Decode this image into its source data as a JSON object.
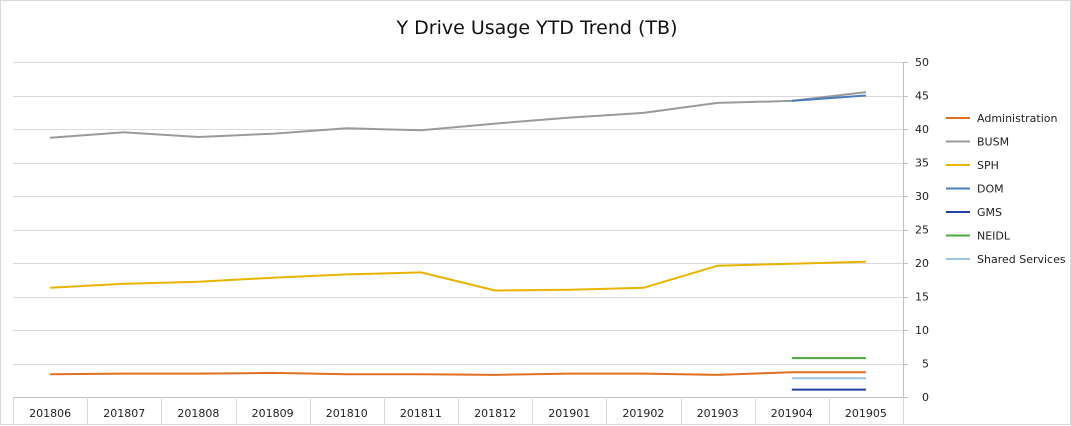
{
  "chart_data": {
    "type": "line",
    "title": "Y Drive Usage YTD Trend (TB)",
    "categories": [
      "201806",
      "201807",
      "201808",
      "201809",
      "201810",
      "201811",
      "201812",
      "201901",
      "201902",
      "201903",
      "201904",
      "201905"
    ],
    "y_axis_position": "right",
    "ylim": [
      0,
      50
    ],
    "yticks": [
      0,
      5,
      10,
      15,
      20,
      25,
      30,
      35,
      40,
      45,
      50
    ],
    "grid": true,
    "legend_position": "right",
    "series": [
      {
        "name": "Administration",
        "color": "#E07020",
        "values": [
          3.4,
          3.5,
          3.5,
          3.6,
          3.4,
          3.4,
          3.3,
          3.5,
          3.5,
          3.3,
          3.7,
          3.7
        ]
      },
      {
        "name": "BUSM",
        "color": "#9A9A9A",
        "values": [
          38.7,
          39.5,
          38.8,
          39.3,
          40.1,
          39.8,
          40.8,
          41.7,
          42.4,
          43.9,
          44.2,
          45.5
        ]
      },
      {
        "name": "SPH",
        "color": "#E8B400",
        "values": [
          16.3,
          16.9,
          17.2,
          17.8,
          18.3,
          18.6,
          15.9,
          16.0,
          16.3,
          19.6,
          19.9,
          20.2
        ]
      },
      {
        "name": "DOM",
        "color": "#4A7EBB",
        "values": [
          null,
          null,
          null,
          null,
          null,
          null,
          null,
          null,
          null,
          null,
          44.2,
          45.0
        ]
      },
      {
        "name": "GMS",
        "color": "#2040A0",
        "values": [
          null,
          null,
          null,
          null,
          null,
          null,
          null,
          null,
          null,
          null,
          1.1,
          1.1
        ]
      },
      {
        "name": "NEIDL",
        "color": "#4CA83C",
        "values": [
          null,
          null,
          null,
          null,
          null,
          null,
          null,
          null,
          null,
          null,
          5.8,
          5.8
        ]
      },
      {
        "name": "Shared Services",
        "color": "#9DC3E6",
        "values": [
          null,
          null,
          null,
          null,
          null,
          null,
          null,
          null,
          null,
          null,
          2.8,
          2.8
        ]
      }
    ]
  }
}
